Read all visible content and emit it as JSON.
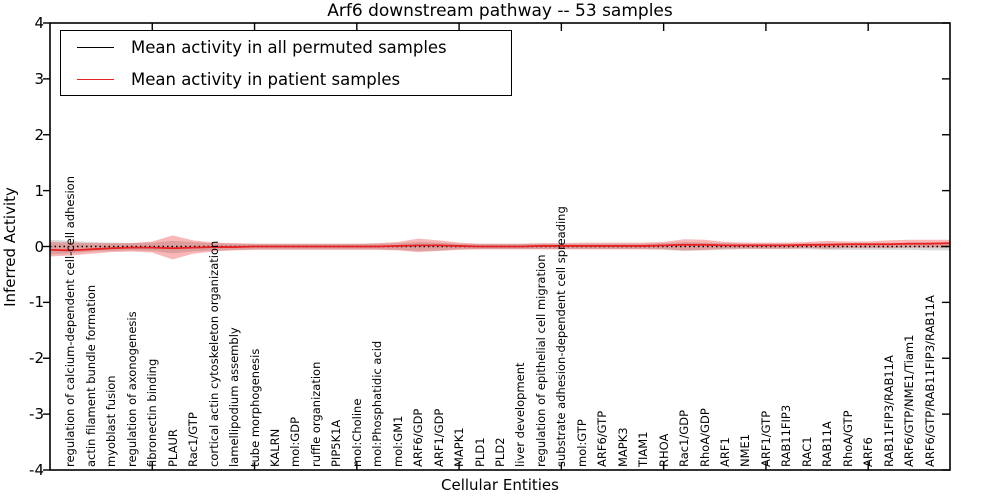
{
  "title": "Arf6 downstream pathway -- 53 samples",
  "ylabel": "Inferred Activity",
  "xlabel": "Cellular Entities",
  "legend": {
    "items": [
      {
        "label": "Mean activity in all permuted samples",
        "color": "#000000"
      },
      {
        "label": "Mean activity in patient samples",
        "color": "#e82222"
      }
    ]
  },
  "axes": {
    "y_tick_labels": [
      "4",
      "3",
      "2",
      "1",
      "0",
      "-1",
      "-2",
      "-3",
      "-4"
    ],
    "y_tick_values": [
      4,
      3,
      2,
      1,
      0,
      -1,
      -2,
      -3,
      -4
    ]
  },
  "colors": {
    "patient_line": "#e82222",
    "patient_band": "#e82222",
    "permuted_line": "#000000",
    "permuted_band": "#aaaaaa"
  },
  "chart_data": {
    "type": "line",
    "title": "Arf6 downstream pathway -- 53 samples",
    "xlabel": "Cellular Entities",
    "ylabel": "Inferred Activity",
    "ylim": [
      -4,
      4
    ],
    "xlim": [
      0,
      44
    ],
    "x_axis_ticks": [
      5,
      10,
      15,
      20,
      25,
      30,
      35,
      40
    ],
    "grid": false,
    "legend_position": "upper left",
    "categories": [
      "regulation of calcium-dependent cell-cell adhesion",
      "actin filament bundle formation",
      "myoblast fusion",
      "regulation of axonogenesis",
      "fibronectin binding",
      "PLAUR",
      "Rac1/GTP",
      "cortical actin cytoskeleton organization",
      "lamellipodium assembly",
      "tube morphogenesis",
      "KALRN",
      "mol:GDP",
      "ruffle organization",
      "PIP5K1A",
      "mol:Choline",
      "mol:Phosphatidic acid",
      "mol:GM1",
      "ARF6/GDP",
      "ARF1/GDP",
      "MAPK1",
      "PLD1",
      "PLD2",
      "liver development",
      "regulation of epithelial cell migration",
      "substrate adhesion-dependent cell spreading",
      "mol:GTP",
      "ARF6/GTP",
      "MAPK3",
      "TIAM1",
      "RHOA",
      "Rac1/GDP",
      "RhoA/GDP",
      "ARF1",
      "NME1",
      "ARF1/GTP",
      "RAB11FIP3",
      "RAC1",
      "RAB11A",
      "RhoA/GTP",
      "ARF6",
      "RAB11FIP3/RAB11A",
      "ARF6/GTP/NME1/Tiam1",
      "ARF6/GTP/RAB11FIP3/RAB11A"
    ],
    "series": [
      {
        "name": "Mean activity in all permuted samples",
        "color": "#000000",
        "style": "dotted",
        "edge_values": [
          0,
          0
        ],
        "values": [
          0,
          0,
          0,
          0,
          0,
          0,
          0,
          0,
          0,
          0,
          0,
          0,
          0,
          0,
          0,
          0,
          0,
          0,
          0,
          0,
          0,
          0,
          0,
          0,
          0,
          0,
          0,
          0,
          0,
          0,
          0,
          0,
          0,
          0,
          0,
          0,
          0,
          0,
          0,
          0,
          0,
          0,
          0
        ]
      },
      {
        "name": "Mean activity in patient samples",
        "color": "#e82222",
        "style": "solid",
        "edge_values": [
          -0.06,
          0.06
        ],
        "values": [
          -0.07,
          -0.05,
          -0.03,
          -0.02,
          -0.02,
          -0.03,
          -0.02,
          -0.01,
          -0.01,
          0,
          0,
          0,
          0,
          0,
          0,
          0,
          0.01,
          0.02,
          0.02,
          0.01,
          0,
          0,
          0,
          0.01,
          0.01,
          0.01,
          0.01,
          0.01,
          0.01,
          0.02,
          0.03,
          0.03,
          0.02,
          0.02,
          0.02,
          0.02,
          0.03,
          0.03,
          0.04,
          0.04,
          0.04,
          0.05,
          0.05
        ]
      }
    ],
    "bands": [
      {
        "name": "permuted-range",
        "color": "#aaaaaa",
        "opacity": 0.45,
        "x_start": 0,
        "x_end": 44,
        "upper": [
          0.12,
          0.1,
          0.08,
          0.07,
          0.06,
          0.07,
          0.1,
          0.08,
          0.06,
          0.05,
          0.05,
          0.05,
          0.05,
          0.05,
          0.05,
          0.05,
          0.05,
          0.06,
          0.08,
          0.07,
          0.05,
          0.05,
          0.05,
          0.05,
          0.05,
          0.05,
          0.05,
          0.05,
          0.05,
          0.05,
          0.06,
          0.08,
          0.07,
          0.06,
          0.05,
          0.05,
          0.05,
          0.05,
          0.06,
          0.06,
          0.06,
          0.06,
          0.06,
          0.07,
          0.07
        ],
        "lower": [
          -0.14,
          -0.12,
          -0.09,
          -0.08,
          -0.07,
          -0.08,
          -0.12,
          -0.09,
          -0.07,
          -0.06,
          -0.05,
          -0.05,
          -0.05,
          -0.05,
          -0.05,
          -0.05,
          -0.05,
          -0.06,
          -0.08,
          -0.07,
          -0.05,
          -0.05,
          -0.05,
          -0.05,
          -0.05,
          -0.05,
          -0.05,
          -0.05,
          -0.05,
          -0.05,
          -0.06,
          -0.08,
          -0.07,
          -0.06,
          -0.05,
          -0.05,
          -0.05,
          -0.05,
          -0.06,
          -0.06,
          -0.06,
          -0.06,
          -0.06,
          -0.07,
          -0.07
        ]
      },
      {
        "name": "patient-range",
        "color": "#e82222",
        "opacity": 0.32,
        "x_start": 0,
        "x_end": 44,
        "upper": [
          0.08,
          0.07,
          0.06,
          0.06,
          0.06,
          0.09,
          0.2,
          0.11,
          0.07,
          0.06,
          0.05,
          0.05,
          0.05,
          0.05,
          0.05,
          0.05,
          0.06,
          0.08,
          0.14,
          0.11,
          0.07,
          0.05,
          0.05,
          0.05,
          0.06,
          0.06,
          0.07,
          0.07,
          0.07,
          0.07,
          0.08,
          0.13,
          0.12,
          0.08,
          0.07,
          0.07,
          0.07,
          0.08,
          0.1,
          0.09,
          0.09,
          0.11,
          0.12,
          0.12,
          0.12
        ],
        "lower": [
          -0.18,
          -0.16,
          -0.13,
          -0.1,
          -0.09,
          -0.11,
          -0.23,
          -0.13,
          -0.09,
          -0.07,
          -0.06,
          -0.06,
          -0.06,
          -0.06,
          -0.06,
          -0.06,
          -0.06,
          -0.07,
          -0.1,
          -0.08,
          -0.06,
          -0.05,
          -0.05,
          -0.05,
          -0.05,
          -0.05,
          -0.05,
          -0.05,
          -0.05,
          -0.05,
          -0.05,
          -0.07,
          -0.06,
          -0.04,
          -0.04,
          -0.04,
          -0.04,
          -0.03,
          -0.04,
          -0.03,
          -0.03,
          -0.03,
          -0.02,
          -0.02,
          -0.02
        ]
      }
    ]
  }
}
